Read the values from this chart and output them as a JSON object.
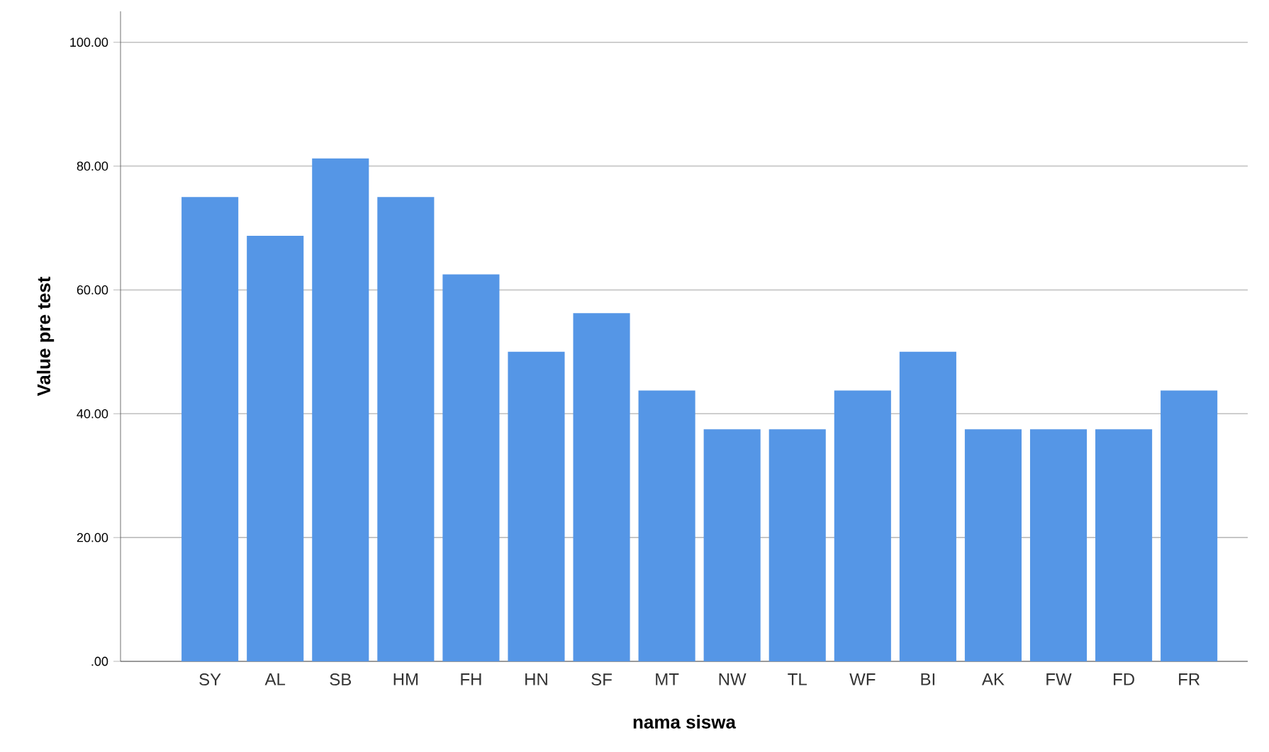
{
  "chart_data": {
    "type": "bar",
    "xlabel": "nama siswa",
    "ylabel": "Value pre test",
    "categories": [
      "SY",
      "AL",
      "SB",
      "HM",
      "FH",
      "HN",
      "SF",
      "MT",
      "NW",
      "TL",
      "WF",
      "BI",
      "AK",
      "FW",
      "FD",
      "FR"
    ],
    "values": [
      75,
      68.75,
      81.25,
      75,
      62.5,
      50,
      56.25,
      43.75,
      37.5,
      37.5,
      43.75,
      50,
      37.5,
      37.5,
      37.5,
      43.75
    ],
    "color": "#5596e6",
    "ylim": [
      0,
      105
    ],
    "yticks": [
      {
        "value": 0,
        "label": ".00"
      },
      {
        "value": 20,
        "label": "20.00"
      },
      {
        "value": 40,
        "label": "40.00"
      },
      {
        "value": 60,
        "label": "60.00"
      },
      {
        "value": 80,
        "label": "80.00"
      },
      {
        "value": 100,
        "label": "100.00"
      }
    ],
    "grid": "y"
  }
}
